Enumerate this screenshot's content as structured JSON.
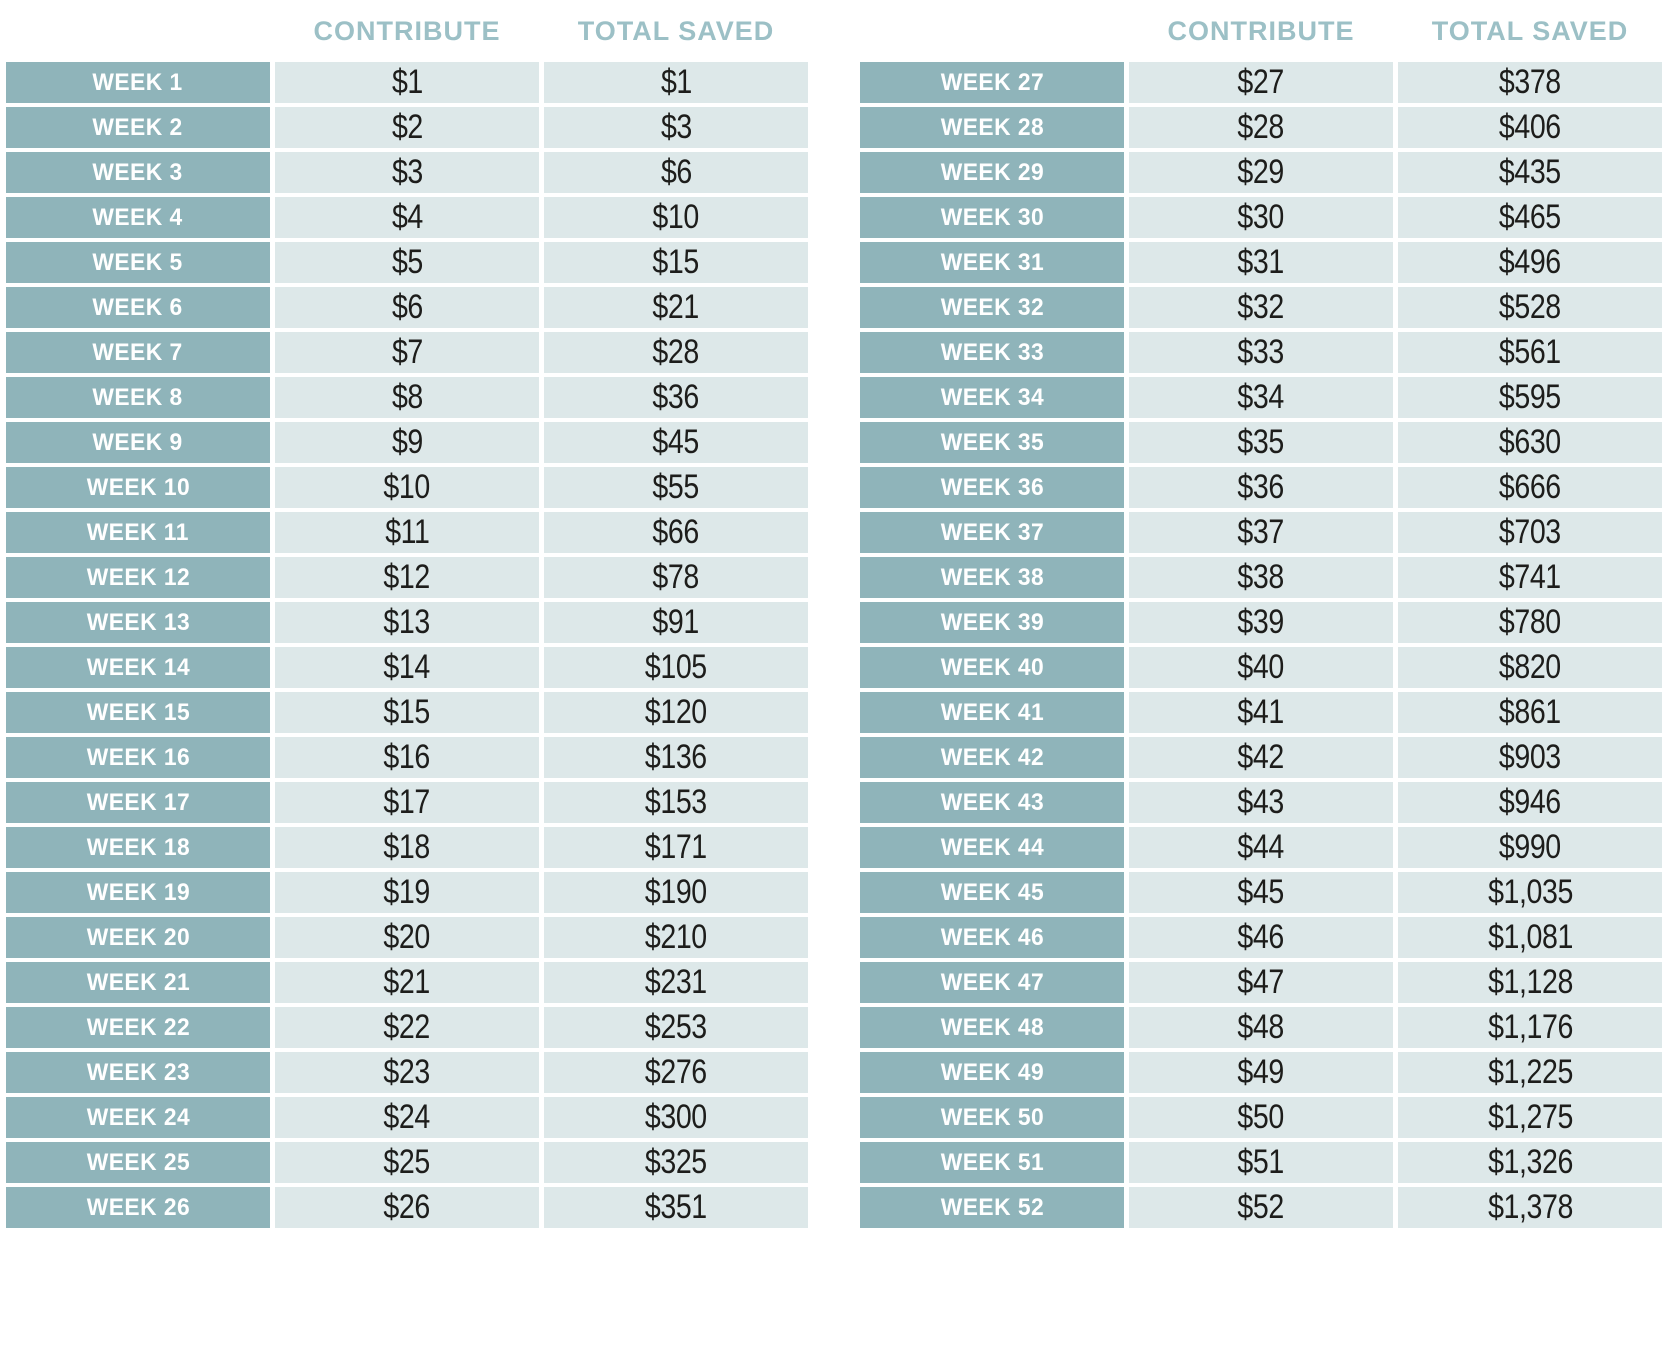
{
  "colors": {
    "page_bg": "#ffffff",
    "week_cell_bg": "#8fb4ba",
    "value_cell_bg": "#dde8e9",
    "header_text": "#9cc0c6",
    "week_text": "#ffffff",
    "value_text": "#1d1d1b"
  },
  "header": {
    "contribute_label": "CONTRIBUTE",
    "total_saved_label": "TOTAL SAVED"
  },
  "tables": [
    {
      "name": "weeks-1-26",
      "rows": [
        {
          "week": "WEEK 1",
          "contribute": "$1",
          "total_saved": "$1"
        },
        {
          "week": "WEEK 2",
          "contribute": "$2",
          "total_saved": "$3"
        },
        {
          "week": "WEEK 3",
          "contribute": "$3",
          "total_saved": "$6"
        },
        {
          "week": "WEEK 4",
          "contribute": "$4",
          "total_saved": "$10"
        },
        {
          "week": "WEEK 5",
          "contribute": "$5",
          "total_saved": "$15"
        },
        {
          "week": "WEEK 6",
          "contribute": "$6",
          "total_saved": "$21"
        },
        {
          "week": "WEEK 7",
          "contribute": "$7",
          "total_saved": "$28"
        },
        {
          "week": "WEEK 8",
          "contribute": "$8",
          "total_saved": "$36"
        },
        {
          "week": "WEEK 9",
          "contribute": "$9",
          "total_saved": "$45"
        },
        {
          "week": "WEEK 10",
          "contribute": "$10",
          "total_saved": "$55"
        },
        {
          "week": "WEEK 11",
          "contribute": "$11",
          "total_saved": "$66"
        },
        {
          "week": "WEEK 12",
          "contribute": "$12",
          "total_saved": "$78"
        },
        {
          "week": "WEEK 13",
          "contribute": "$13",
          "total_saved": "$91"
        },
        {
          "week": "WEEK 14",
          "contribute": "$14",
          "total_saved": "$105"
        },
        {
          "week": "WEEK 15",
          "contribute": "$15",
          "total_saved": "$120"
        },
        {
          "week": "WEEK 16",
          "contribute": "$16",
          "total_saved": "$136"
        },
        {
          "week": "WEEK 17",
          "contribute": "$17",
          "total_saved": "$153"
        },
        {
          "week": "WEEK 18",
          "contribute": "$18",
          "total_saved": "$171"
        },
        {
          "week": "WEEK 19",
          "contribute": "$19",
          "total_saved": "$190"
        },
        {
          "week": "WEEK 20",
          "contribute": "$20",
          "total_saved": "$210"
        },
        {
          "week": "WEEK 21",
          "contribute": "$21",
          "total_saved": "$231"
        },
        {
          "week": "WEEK 22",
          "contribute": "$22",
          "total_saved": "$253"
        },
        {
          "week": "WEEK 23",
          "contribute": "$23",
          "total_saved": "$276"
        },
        {
          "week": "WEEK 24",
          "contribute": "$24",
          "total_saved": "$300"
        },
        {
          "week": "WEEK 25",
          "contribute": "$25",
          "total_saved": "$325"
        },
        {
          "week": "WEEK 26",
          "contribute": "$26",
          "total_saved": "$351"
        }
      ]
    },
    {
      "name": "weeks-27-52",
      "rows": [
        {
          "week": "WEEK 27",
          "contribute": "$27",
          "total_saved": "$378"
        },
        {
          "week": "WEEK 28",
          "contribute": "$28",
          "total_saved": "$406"
        },
        {
          "week": "WEEK 29",
          "contribute": "$29",
          "total_saved": "$435"
        },
        {
          "week": "WEEK 30",
          "contribute": "$30",
          "total_saved": "$465"
        },
        {
          "week": "WEEK 31",
          "contribute": "$31",
          "total_saved": "$496"
        },
        {
          "week": "WEEK 32",
          "contribute": "$32",
          "total_saved": "$528"
        },
        {
          "week": "WEEK 33",
          "contribute": "$33",
          "total_saved": "$561"
        },
        {
          "week": "WEEK 34",
          "contribute": "$34",
          "total_saved": "$595"
        },
        {
          "week": "WEEK 35",
          "contribute": "$35",
          "total_saved": "$630"
        },
        {
          "week": "WEEK 36",
          "contribute": "$36",
          "total_saved": "$666"
        },
        {
          "week": "WEEK 37",
          "contribute": "$37",
          "total_saved": "$703"
        },
        {
          "week": "WEEK 38",
          "contribute": "$38",
          "total_saved": "$741"
        },
        {
          "week": "WEEK 39",
          "contribute": "$39",
          "total_saved": "$780"
        },
        {
          "week": "WEEK 40",
          "contribute": "$40",
          "total_saved": "$820"
        },
        {
          "week": "WEEK 41",
          "contribute": "$41",
          "total_saved": "$861"
        },
        {
          "week": "WEEK 42",
          "contribute": "$42",
          "total_saved": "$903"
        },
        {
          "week": "WEEK 43",
          "contribute": "$43",
          "total_saved": "$946"
        },
        {
          "week": "WEEK 44",
          "contribute": "$44",
          "total_saved": "$990"
        },
        {
          "week": "WEEK 45",
          "contribute": "$45",
          "total_saved": "$1,035"
        },
        {
          "week": "WEEK 46",
          "contribute": "$46",
          "total_saved": "$1,081"
        },
        {
          "week": "WEEK 47",
          "contribute": "$47",
          "total_saved": "$1,128"
        },
        {
          "week": "WEEK 48",
          "contribute": "$48",
          "total_saved": "$1,176"
        },
        {
          "week": "WEEK 49",
          "contribute": "$49",
          "total_saved": "$1,225"
        },
        {
          "week": "WEEK 50",
          "contribute": "$50",
          "total_saved": "$1,275"
        },
        {
          "week": "WEEK 51",
          "contribute": "$51",
          "total_saved": "$1,326"
        },
        {
          "week": "WEEK 52",
          "contribute": "$52",
          "total_saved": "$1,378"
        }
      ]
    }
  ],
  "chart_data": {
    "type": "table",
    "title": "",
    "layout": "two side-by-side panels, weeks 1-26 left and weeks 27-52 right",
    "columns": [
      "WEEK",
      "CONTRIBUTE",
      "TOTAL SAVED"
    ],
    "rows": [
      [
        "WEEK 1",
        1,
        1
      ],
      [
        "WEEK 2",
        2,
        3
      ],
      [
        "WEEK 3",
        3,
        6
      ],
      [
        "WEEK 4",
        4,
        10
      ],
      [
        "WEEK 5",
        5,
        15
      ],
      [
        "WEEK 6",
        6,
        21
      ],
      [
        "WEEK 7",
        7,
        28
      ],
      [
        "WEEK 8",
        8,
        36
      ],
      [
        "WEEK 9",
        9,
        45
      ],
      [
        "WEEK 10",
        10,
        55
      ],
      [
        "WEEK 11",
        11,
        66
      ],
      [
        "WEEK 12",
        12,
        78
      ],
      [
        "WEEK 13",
        13,
        91
      ],
      [
        "WEEK 14",
        14,
        105
      ],
      [
        "WEEK 15",
        15,
        120
      ],
      [
        "WEEK 16",
        16,
        136
      ],
      [
        "WEEK 17",
        17,
        153
      ],
      [
        "WEEK 18",
        18,
        171
      ],
      [
        "WEEK 19",
        19,
        190
      ],
      [
        "WEEK 20",
        20,
        210
      ],
      [
        "WEEK 21",
        21,
        231
      ],
      [
        "WEEK 22",
        22,
        253
      ],
      [
        "WEEK 23",
        23,
        276
      ],
      [
        "WEEK 24",
        24,
        300
      ],
      [
        "WEEK 25",
        25,
        325
      ],
      [
        "WEEK 26",
        26,
        351
      ],
      [
        "WEEK 27",
        27,
        378
      ],
      [
        "WEEK 28",
        28,
        406
      ],
      [
        "WEEK 29",
        29,
        435
      ],
      [
        "WEEK 30",
        30,
        465
      ],
      [
        "WEEK 31",
        31,
        496
      ],
      [
        "WEEK 32",
        32,
        528
      ],
      [
        "WEEK 33",
        33,
        561
      ],
      [
        "WEEK 34",
        34,
        595
      ],
      [
        "WEEK 35",
        35,
        630
      ],
      [
        "WEEK 36",
        36,
        666
      ],
      [
        "WEEK 37",
        37,
        703
      ],
      [
        "WEEK 38",
        38,
        741
      ],
      [
        "WEEK 39",
        39,
        780
      ],
      [
        "WEEK 40",
        40,
        820
      ],
      [
        "WEEK 41",
        41,
        861
      ],
      [
        "WEEK 42",
        42,
        903
      ],
      [
        "WEEK 43",
        43,
        946
      ],
      [
        "WEEK 44",
        44,
        990
      ],
      [
        "WEEK 45",
        45,
        1035
      ],
      [
        "WEEK 46",
        46,
        1081
      ],
      [
        "WEEK 47",
        47,
        1128
      ],
      [
        "WEEK 48",
        48,
        1176
      ],
      [
        "WEEK 49",
        49,
        1225
      ],
      [
        "WEEK 50",
        50,
        1275
      ],
      [
        "WEEK 51",
        51,
        1326
      ],
      [
        "WEEK 52",
        52,
        1378
      ]
    ],
    "units": "USD"
  }
}
